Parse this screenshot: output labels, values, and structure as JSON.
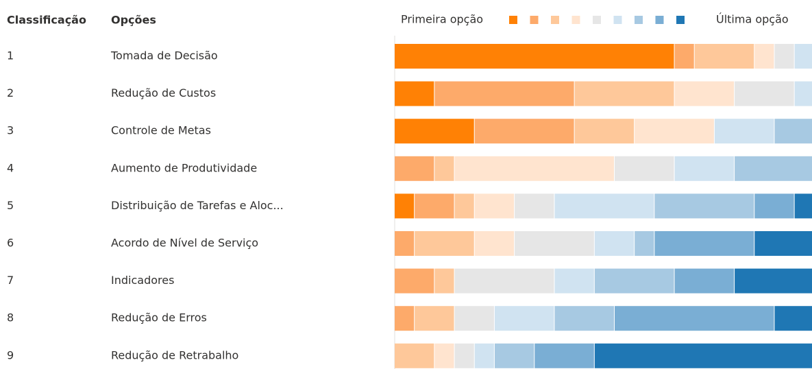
{
  "chart_data": {
    "type": "stacked-bar-horizontal",
    "headers": {
      "rank": "Classificação",
      "option": "Opções"
    },
    "legend": {
      "first": "Primeira opção",
      "last": "Última opção"
    },
    "ranks": [
      1,
      2,
      3,
      4,
      5,
      6,
      7,
      8,
      9
    ],
    "categories": [
      "Tomada de Decisão",
      "Redução de Custos",
      "Controle de Metas",
      "Aumento de Produtividade",
      "Distribuição de Tarefas e Aloc...",
      "Acordo de Nível de Serviço",
      "Indicadores",
      "Redução de Erros",
      "Redução de Retrabalho"
    ],
    "xlim": [
      0,
      22
    ],
    "series": [
      {
        "color": "#ff8105",
        "values": [
          14,
          2,
          4,
          0,
          1,
          0,
          0,
          0,
          0
        ]
      },
      {
        "color": "#fdaa6a",
        "values": [
          1,
          7,
          5,
          2,
          2,
          1,
          2,
          1,
          0
        ]
      },
      {
        "color": "#fec89a",
        "values": [
          3,
          5,
          3,
          1,
          1,
          3,
          1,
          2,
          2
        ]
      },
      {
        "color": "#ffe4cf",
        "values": [
          1,
          3,
          4,
          8,
          2,
          2,
          0,
          0,
          1
        ]
      },
      {
        "color": "#e6e6e6",
        "values": [
          1,
          3,
          0,
          3,
          2,
          4,
          5,
          2,
          1
        ]
      },
      {
        "color": "#d0e3f1",
        "values": [
          1,
          1,
          3,
          3,
          5,
          2,
          2,
          3,
          1
        ]
      },
      {
        "color": "#a7c9e2",
        "values": [
          1,
          1,
          3,
          5,
          5,
          1,
          4,
          3,
          2
        ]
      },
      {
        "color": "#7aaed4",
        "values": [
          0,
          0,
          0,
          0,
          2,
          5,
          3,
          8,
          3
        ]
      },
      {
        "color": "#1f77b4",
        "values": [
          0,
          0,
          0,
          0,
          2,
          4,
          5,
          3,
          12
        ]
      }
    ]
  }
}
